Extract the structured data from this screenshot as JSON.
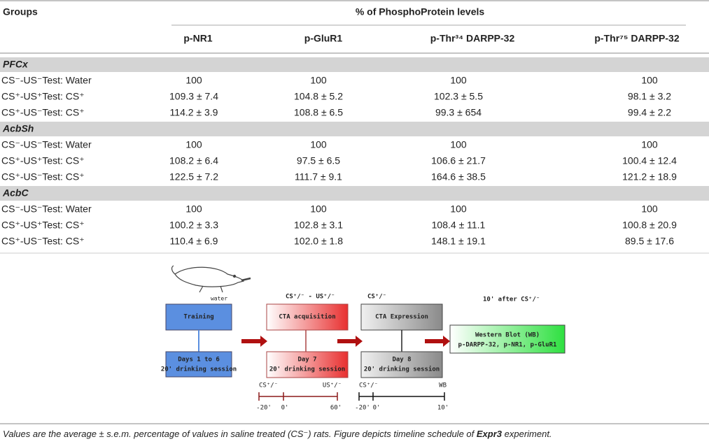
{
  "table": {
    "header": {
      "groups": "Groups",
      "span": "% of PhosphoProtein levels",
      "columns": [
        "p-NR1",
        "p-GluR1",
        "p-Thr³⁴ DARPP-32",
        "p-Thr⁷⁵ DARPP-32"
      ]
    },
    "sections": [
      {
        "name": "PFCx",
        "rows": [
          {
            "label": "CS⁻-US⁻Test: Water",
            "values": [
              "100",
              "100",
              "100",
              "100"
            ]
          },
          {
            "label": "CS⁺-US⁺Test: CS⁺",
            "values": [
              "109.3 ± 7.4",
              "104.8 ± 5.2",
              "102.3 ± 5.5",
              "98.1 ± 3.2"
            ]
          },
          {
            "label": "CS⁺-US⁻Test: CS⁺",
            "values": [
              "114.2 ± 3.9",
              "108.8 ± 6.5",
              "99.3 ± 654",
              "99.4 ± 2.2"
            ]
          }
        ]
      },
      {
        "name": "AcbSh",
        "rows": [
          {
            "label": "CS⁻-US⁻Test: Water",
            "values": [
              "100",
              "100",
              "100",
              "100"
            ]
          },
          {
            "label": "CS⁺-US⁺Test: CS⁺",
            "values": [
              "108.2 ± 6.4",
              "97.5 ± 6.5",
              "106.6 ± 21.7",
              "100.4 ± 12.4"
            ]
          },
          {
            "label": "CS⁺-US⁻Test: CS⁺",
            "values": [
              "122.5 ± 7.2",
              "111.7 ± 9.1",
              "164.6 ± 38.5",
              "121.2 ± 18.9"
            ]
          }
        ]
      },
      {
        "name": "AcbC",
        "rows": [
          {
            "label": "CS⁻-US⁻Test: Water",
            "values": [
              "100",
              "100",
              "100",
              "100"
            ]
          },
          {
            "label": "CS⁺-US⁺Test: CS⁺",
            "values": [
              "100.2 ± 3.3",
              "102.8 ± 3.1",
              "108.4 ± 11.1",
              "100.8 ± 20.9"
            ]
          },
          {
            "label": "CS⁺-US⁻Test: CS⁺",
            "values": [
              "110.4 ± 6.9",
              "102.0 ± 1.8",
              "148.1 ± 19.1",
              "89.5 ± 17.6"
            ]
          }
        ]
      }
    ]
  },
  "figure": {
    "water": "water",
    "training": "Training",
    "training_days": [
      "Days 1 to 6",
      "20' drinking session"
    ],
    "acq_label": "CS⁺/⁻ - US⁺/⁻",
    "acq": "CTA acquisition",
    "acq_days": [
      "Day 7",
      "20' drinking session"
    ],
    "exp_label": "CS⁺/⁻",
    "exp": "CTA Expression",
    "exp_days": [
      "Day 8",
      "20' drinking session"
    ],
    "wb_label": "10' after CS⁺/⁻",
    "wb": [
      "Western Blot  (WB)",
      "p-DARPP-32, p-NR1, p-GluR1"
    ],
    "timeline1": {
      "start": "CS⁺/⁻",
      "end": "US⁺/⁻",
      "ticks": [
        "-20'",
        "0'",
        "60'"
      ]
    },
    "timeline2": {
      "start": "CS⁺/⁻",
      "end": "WB",
      "ticks": [
        "-20'",
        "0'",
        "10'"
      ]
    }
  },
  "caption": {
    "parts": [
      "Values are the average ± s.e.m. percentage of values in saline treated (CS⁻) rats. Figure depicts timeline schedule of ",
      "Expr3",
      " experiment."
    ]
  }
}
